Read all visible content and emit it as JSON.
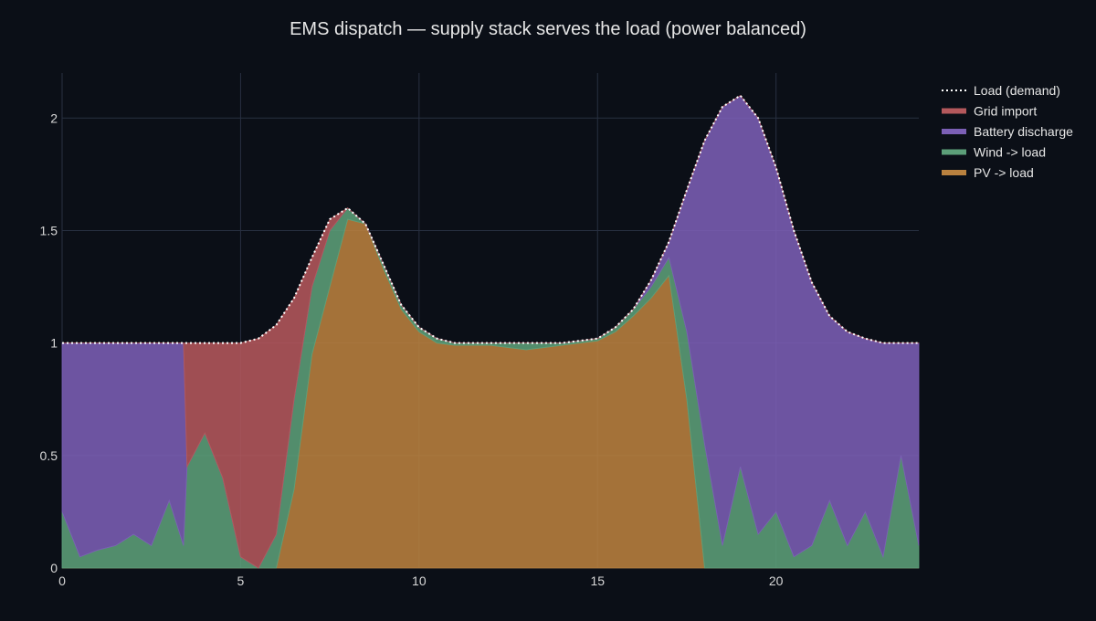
{
  "chart_data": {
    "type": "area",
    "title": "EMS dispatch — supply stack serves the load (power balanced)",
    "xlabel": "",
    "ylabel": "",
    "xlim": [
      0,
      24
    ],
    "ylim": [
      0,
      2.2
    ],
    "xticks": [
      0,
      5,
      10,
      15,
      20
    ],
    "xtick_labels": [
      "0",
      "5",
      "10",
      "15",
      "20"
    ],
    "yticks": [
      0,
      0.5,
      1,
      1.5,
      2
    ],
    "ytick_labels": [
      "0",
      "0.5",
      "1",
      "1.5",
      "2"
    ],
    "grid": true,
    "legend_position": "top-right (outside plot)",
    "stack_order": [
      "PV -> load",
      "Wind -> load",
      "Battery discharge",
      "Grid import"
    ],
    "legend": [
      {
        "name": "Load (demand)",
        "style": "dotted-line",
        "color": "#ffffff"
      },
      {
        "name": "Grid import",
        "style": "area",
        "color": "#b4585c"
      },
      {
        "name": "Battery discharge",
        "style": "area",
        "color": "#7b5fb5"
      },
      {
        "name": "Wind -> load",
        "style": "area",
        "color": "#5c9f79"
      },
      {
        "name": "PV -> load",
        "style": "area",
        "color": "#b9813f"
      }
    ],
    "x": [
      0,
      0.5,
      1,
      1.5,
      2,
      2.5,
      3,
      3.4,
      3.5,
      4,
      4.5,
      5,
      5.5,
      6,
      6.5,
      7,
      7.5,
      8,
      8.5,
      9,
      9.5,
      10,
      10.5,
      11,
      12,
      13,
      14,
      15,
      15.5,
      16,
      16.5,
      17,
      17.5,
      18,
      18.5,
      19,
      19.5,
      20,
      20.5,
      21,
      21.5,
      22,
      22.5,
      23,
      23.5,
      24
    ],
    "series": [
      {
        "name": "Load (demand)",
        "values": [
          1.0,
          1.0,
          1.0,
          1.0,
          1.0,
          1.0,
          1.0,
          1.0,
          1.0,
          1.0,
          1.0,
          1.0,
          1.02,
          1.08,
          1.2,
          1.38,
          1.55,
          1.6,
          1.53,
          1.35,
          1.17,
          1.07,
          1.02,
          1.0,
          1.0,
          1.0,
          1.0,
          1.02,
          1.07,
          1.15,
          1.28,
          1.45,
          1.68,
          1.9,
          2.05,
          2.1,
          2.0,
          1.78,
          1.5,
          1.27,
          1.12,
          1.05,
          1.02,
          1.0,
          1.0,
          1.0
        ]
      },
      {
        "name": "PV -> load",
        "values": [
          0,
          0,
          0,
          0,
          0,
          0,
          0,
          0,
          0,
          0,
          0,
          0,
          0,
          0,
          0.35,
          0.95,
          1.25,
          1.55,
          1.53,
          1.33,
          1.15,
          1.05,
          1.0,
          0.99,
          0.99,
          0.97,
          0.99,
          1.01,
          1.05,
          1.12,
          1.2,
          1.3,
          0.75,
          0,
          0,
          0,
          0,
          0,
          0,
          0,
          0,
          0,
          0,
          0,
          0,
          0
        ]
      },
      {
        "name": "Wind -> load",
        "values": [
          0.25,
          0.05,
          0.08,
          0.1,
          0.15,
          0.1,
          0.3,
          0.1,
          0.45,
          0.6,
          0.4,
          0.05,
          0,
          0.15,
          0.4,
          0.3,
          0.25,
          0.05,
          0,
          0.02,
          0.02,
          0.02,
          0.02,
          0.01,
          0.01,
          0.03,
          0.01,
          0.01,
          0.02,
          0.03,
          0.05,
          0.08,
          0.3,
          0.55,
          0.1,
          0.45,
          0.15,
          0.25,
          0.05,
          0.1,
          0.3,
          0.1,
          0.25,
          0.05,
          0.5,
          0.1
        ]
      },
      {
        "name": "Battery discharge",
        "values": [
          0.75,
          0.95,
          0.92,
          0.9,
          0.85,
          0.9,
          0.7,
          0.9,
          0,
          0,
          0,
          0,
          0,
          0,
          0,
          0,
          0,
          0,
          0,
          0,
          0,
          0,
          0,
          0,
          0,
          0,
          0,
          0,
          0,
          0,
          0.03,
          0.07,
          0.63,
          1.35,
          1.95,
          1.65,
          1.85,
          1.53,
          1.45,
          1.17,
          0.82,
          0.95,
          0.77,
          0.95,
          0.5,
          0.9
        ]
      },
      {
        "name": "Grid import",
        "values": [
          0,
          0,
          0,
          0,
          0,
          0,
          0,
          0,
          0.55,
          0.4,
          0.6,
          0.95,
          1.02,
          0.93,
          0.45,
          0.13,
          0.05,
          0,
          0,
          0,
          0,
          0,
          0,
          0,
          0,
          0,
          0,
          0,
          0,
          0,
          0,
          0,
          0,
          0,
          0,
          0,
          0,
          0,
          0,
          0,
          0,
          0,
          0,
          0,
          0,
          0
        ]
      }
    ]
  }
}
